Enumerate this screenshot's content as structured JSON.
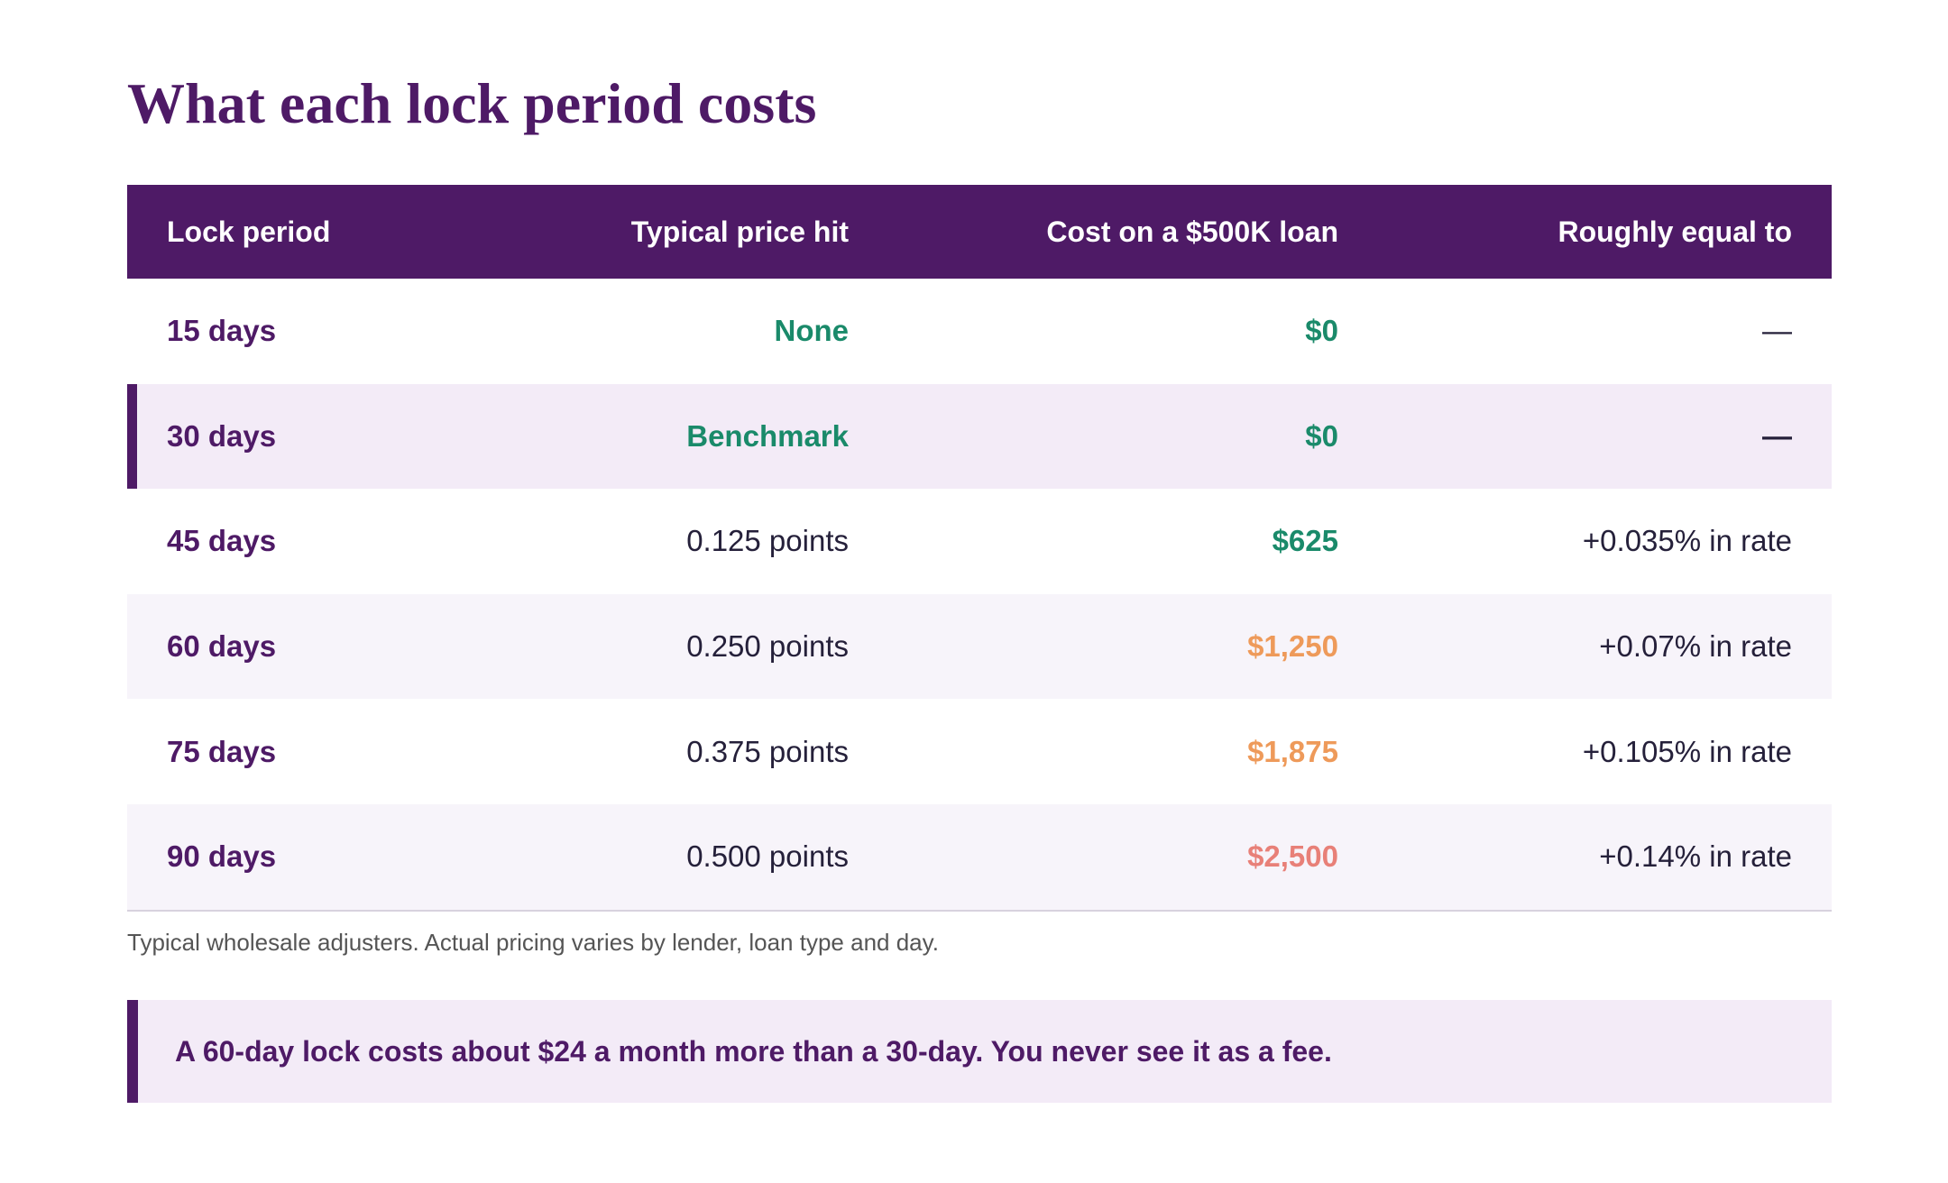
{
  "title": "What each lock period costs",
  "table": {
    "headers": [
      "Lock period",
      "Typical price hit",
      "Cost on a $500K loan",
      "Roughly equal to"
    ],
    "rows": [
      {
        "period": "15 days",
        "price_hit": "None",
        "cost": "$0",
        "equal_to": "—"
      },
      {
        "period": "30 days",
        "price_hit": "Benchmark",
        "cost": "$0",
        "equal_to": "—"
      },
      {
        "period": "45 days",
        "price_hit": "0.125 points",
        "cost": "$625",
        "equal_to": "+0.035% in rate"
      },
      {
        "period": "60 days",
        "price_hit": "0.250 points",
        "cost": "$1,250",
        "equal_to": "+0.07% in rate"
      },
      {
        "period": "75 days",
        "price_hit": "0.375 points",
        "cost": "$1,875",
        "equal_to": "+0.105% in rate"
      },
      {
        "period": "90 days",
        "price_hit": "0.500 points",
        "cost": "$2,500",
        "equal_to": "+0.14% in rate"
      }
    ]
  },
  "note": "Typical wholesale adjusters. Actual pricing varies by lender, loan type and day.",
  "callout": "A 60-day lock costs about $24 a month more than a 30-day. You never see it as a fee.",
  "colors": {
    "brand_purple": "#4e1a66",
    "green": "#1a8a6a",
    "orange": "#ee9a5a",
    "red": "#e88078"
  }
}
